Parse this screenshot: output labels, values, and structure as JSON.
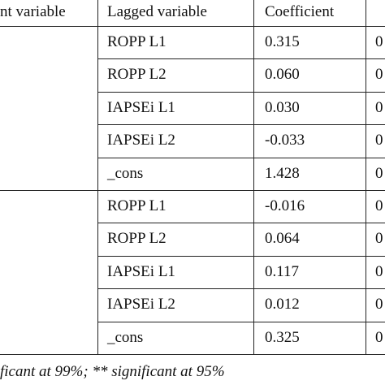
{
  "table": {
    "header": [
      "nt variable",
      "Lagged variable",
      "Coefficient"
    ],
    "groups": [
      {
        "rows": [
          [
            "ROPP L1",
            "0.315",
            "0"
          ],
          [
            "ROPP L2",
            "0.060",
            "0"
          ],
          [
            "IAPSEi L1",
            "0.030",
            "0"
          ],
          [
            "IAPSEi L2",
            "-0.033",
            "0"
          ],
          [
            "_cons",
            "1.428",
            "0"
          ]
        ]
      },
      {
        "rows": [
          [
            "ROPP L1",
            "-0.016",
            "0"
          ],
          [
            "ROPP L2",
            "0.064",
            "0"
          ],
          [
            "IAPSEi L1",
            "0.117",
            "0"
          ],
          [
            "IAPSEi L2",
            "0.012",
            "0"
          ],
          [
            "_cons",
            "0.325",
            "0"
          ]
        ]
      }
    ]
  },
  "footnote": "ficant at 99%; ** significant at 95%"
}
